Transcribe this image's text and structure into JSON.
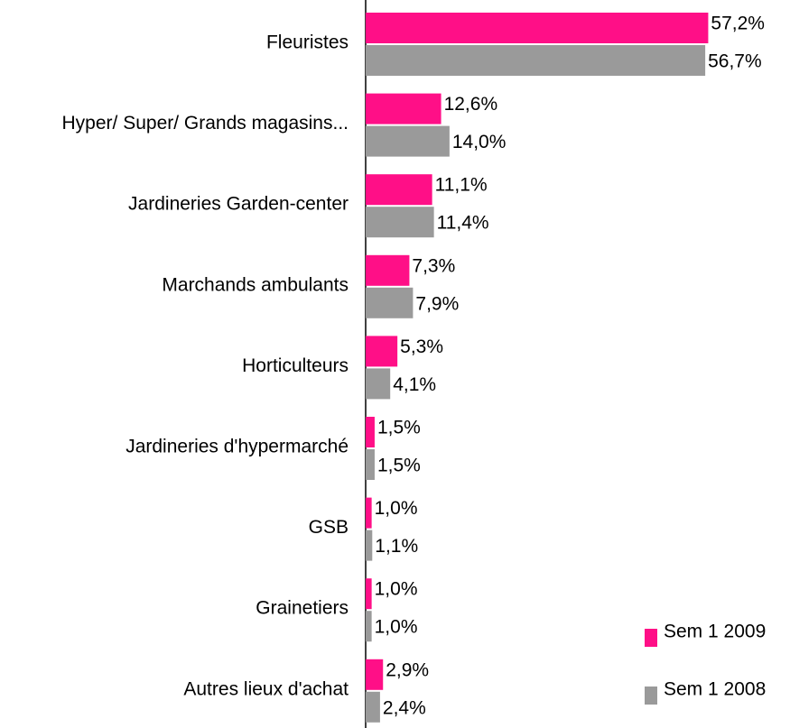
{
  "chart_data": {
    "type": "bar",
    "orientation": "horizontal",
    "categories": [
      "Fleuristes",
      "Hyper/ Super/ Grands magasins...",
      "Jardineries Garden-center",
      "Marchands ambulants",
      "Horticulteurs",
      "Jardineries d'hypermarché",
      "GSB",
      "Grainetiers",
      "Autres lieux d'achat"
    ],
    "series": [
      {
        "name": "Sem 1 2009",
        "color": "#ff0f87",
        "values": [
          57.2,
          12.6,
          11.1,
          7.3,
          5.3,
          1.5,
          1.0,
          1.0,
          2.9
        ],
        "value_labels": [
          "57,2%",
          "12,6%",
          "11,1%",
          "7,3%",
          "5,3%",
          "1,5%",
          "1,0%",
          "1,0%",
          "2,9%"
        ]
      },
      {
        "name": "Sem 1 2008",
        "color": "#9a9a9a",
        "values": [
          56.7,
          14.0,
          11.4,
          7.9,
          4.1,
          1.5,
          1.1,
          1.0,
          2.4
        ],
        "value_labels": [
          "56,7%",
          "14,0%",
          "11,4%",
          "7,9%",
          "4,1%",
          "1,5%",
          "1,1%",
          "1,0%",
          "2,4%"
        ]
      }
    ],
    "xlim": [
      0,
      60
    ],
    "legend": "bottom-right"
  }
}
